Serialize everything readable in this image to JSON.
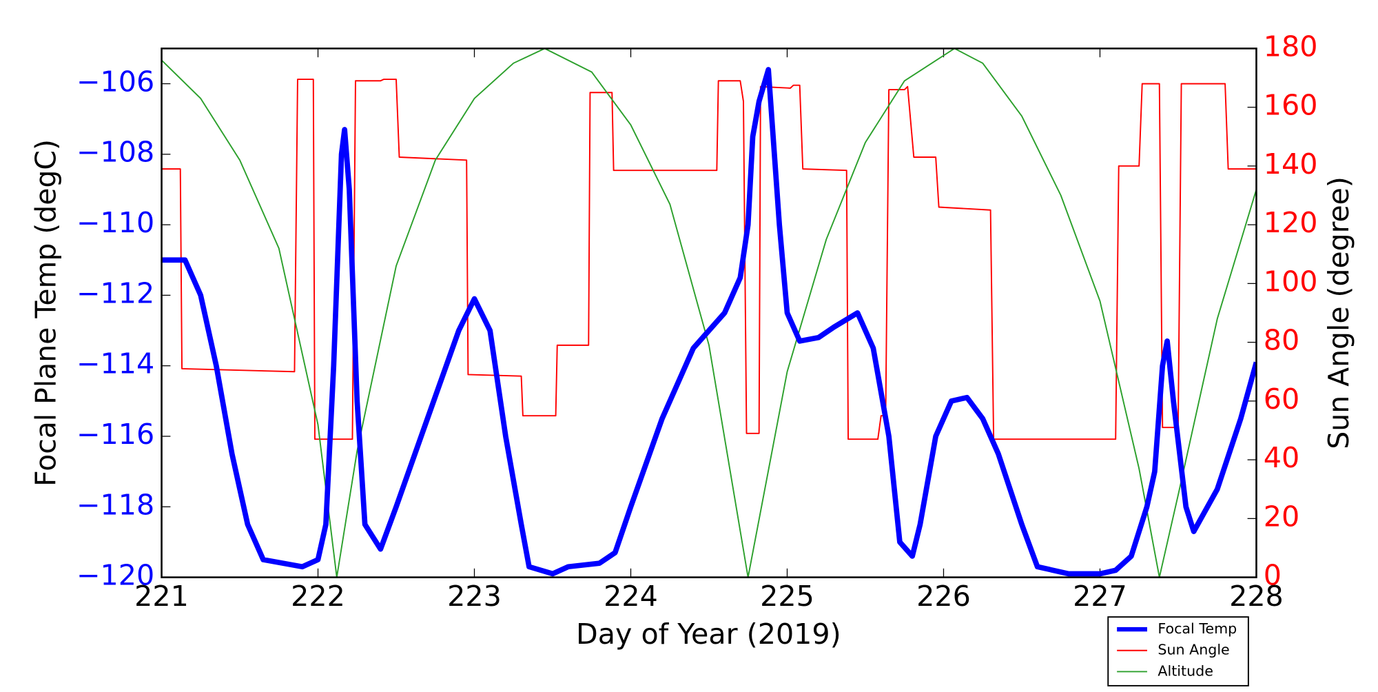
{
  "chart_data": {
    "type": "line",
    "xlabel": "Day of Year (2019)",
    "ylabel": "Focal Plane Temp (degC)",
    "y2label": "Sun Angle (degree)",
    "xlim": [
      221,
      228
    ],
    "xticks": [
      221,
      222,
      223,
      224,
      225,
      226,
      227,
      228
    ],
    "ylim": [
      -120,
      -105
    ],
    "yticks": [
      {
        "value": -120,
        "label": "−120"
      },
      {
        "value": -118,
        "label": "−118"
      },
      {
        "value": -116,
        "label": "−116"
      },
      {
        "value": -114,
        "label": "−114"
      },
      {
        "value": -112,
        "label": "−112"
      },
      {
        "value": -110,
        "label": "−110"
      },
      {
        "value": -108,
        "label": "−108"
      },
      {
        "value": -106,
        "label": "−106"
      }
    ],
    "y2lim": [
      0,
      180
    ],
    "y2ticks": [
      0,
      20,
      40,
      60,
      80,
      100,
      120,
      140,
      160,
      180
    ],
    "ytick_color": "#0000ff",
    "y2tick_color": "#ff0000",
    "legend": "lower right outside",
    "series": [
      {
        "name": "Focal Temp",
        "color": "#0000ff",
        "width": 6,
        "x": [
          221.0,
          221.15,
          221.25,
          221.35,
          221.45,
          221.55,
          221.65,
          221.9,
          222.0,
          222.05,
          222.1,
          222.15,
          222.17,
          222.2,
          222.25,
          222.3,
          222.4,
          222.5,
          222.7,
          222.9,
          223.0,
          223.1,
          223.2,
          223.3,
          223.35,
          223.5,
          223.6,
          223.8,
          223.9,
          224.0,
          224.2,
          224.4,
          224.6,
          224.7,
          224.75,
          224.78,
          224.82,
          224.88,
          224.95,
          225.0,
          225.08,
          225.2,
          225.3,
          225.45,
          225.55,
          225.65,
          225.72,
          225.8,
          225.85,
          225.95,
          226.05,
          226.15,
          226.25,
          226.35,
          226.5,
          226.6,
          226.8,
          227.0,
          227.1,
          227.2,
          227.3,
          227.35,
          227.4,
          227.43,
          227.47,
          227.55,
          227.6,
          227.75,
          227.9,
          228.0
        ],
        "values": [
          -111.0,
          -111.0,
          -112,
          -114.0,
          -116.5,
          -118.5,
          -119.5,
          -119.7,
          -119.5,
          -118.5,
          -114,
          -108,
          -107.3,
          -109,
          -115,
          -118.5,
          -119.2,
          -118,
          -115.5,
          -113,
          -112.1,
          -113,
          -116,
          -118.5,
          -119.7,
          -119.9,
          -119.7,
          -119.6,
          -119.3,
          -118,
          -115.5,
          -113.5,
          -112.5,
          -111.5,
          -110,
          -107.5,
          -106.5,
          -105.6,
          -110,
          -112.5,
          -113.3,
          -113.2,
          -112.9,
          -112.5,
          -113.5,
          -116,
          -119,
          -119.4,
          -118.5,
          -116,
          -115,
          -114.9,
          -115.5,
          -116.5,
          -118.5,
          -119.7,
          -119.9,
          -119.9,
          -119.8,
          -119.4,
          -118,
          -117,
          -114,
          -113.3,
          -115,
          -118,
          -118.7,
          -117.5,
          -115.5,
          -113.9
        ]
      },
      {
        "name": "Sun Angle",
        "color": "#ff0000",
        "width": 1.5,
        "axis": "y2",
        "x": [
          221.0,
          221.12,
          221.13,
          221.85,
          221.87,
          221.97,
          221.98,
          222.22,
          222.24,
          222.4,
          222.42,
          222.5,
          222.52,
          222.95,
          222.96,
          223.3,
          223.31,
          223.52,
          223.53,
          223.73,
          223.74,
          223.88,
          223.89,
          224.55,
          224.56,
          224.7,
          224.72,
          224.74,
          224.82,
          224.83,
          225.02,
          225.04,
          225.08,
          225.1,
          225.38,
          225.39,
          225.58,
          225.6,
          225.63,
          225.65,
          225.75,
          225.77,
          225.81,
          225.95,
          225.97,
          226.3,
          226.32,
          227.1,
          227.12,
          227.25,
          227.27,
          227.38,
          227.4,
          227.5,
          227.52,
          227.8,
          227.82,
          228.0
        ],
        "values": [
          139,
          139,
          71,
          70,
          169.5,
          169.5,
          47,
          47,
          169,
          169,
          169.5,
          169.5,
          143,
          142,
          69,
          68.5,
          55,
          55,
          79,
          79,
          165,
          165,
          138.5,
          138.5,
          169,
          169,
          162,
          49,
          49,
          167,
          166.5,
          167.5,
          167.5,
          139,
          138.5,
          47,
          47,
          55,
          55,
          166,
          166,
          167,
          143,
          143,
          126,
          125,
          47,
          47,
          140,
          140,
          168,
          168,
          51,
          51,
          168,
          168,
          139,
          139
        ]
      },
      {
        "name": "Altitude",
        "color": "#2ca02c",
        "width": 1.5,
        "axis": "y2",
        "x": [
          221.0,
          221.25,
          221.5,
          221.75,
          222.0,
          222.12,
          222.25,
          222.5,
          222.75,
          223.0,
          223.25,
          223.45,
          223.75,
          224.0,
          224.25,
          224.5,
          224.75,
          225.0,
          225.25,
          225.5,
          225.75,
          226.07,
          226.25,
          226.5,
          226.75,
          227.0,
          227.25,
          227.38,
          227.5,
          227.75,
          228.0
        ],
        "values": [
          176,
          163,
          142,
          112,
          52,
          0,
          43,
          106,
          142,
          163,
          175,
          180,
          172,
          154,
          127,
          79,
          0,
          70,
          115,
          148,
          169,
          180,
          175,
          157,
          130,
          94,
          37,
          0,
          28,
          88,
          132
        ]
      }
    ]
  }
}
